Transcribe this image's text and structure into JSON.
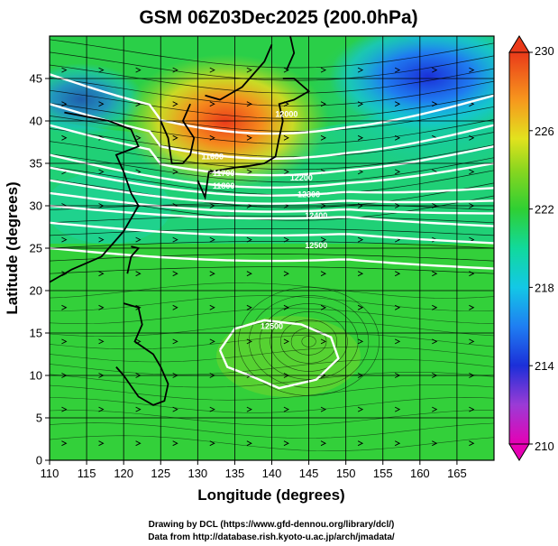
{
  "chart_data": {
    "type": "heatmap",
    "title": "GSM 06Z03Dec2025 (200.0hPa)",
    "xlabel": "Longitude (degrees)",
    "ylabel": "Latitude  (degrees)",
    "xlim": [
      110,
      170
    ],
    "ylim": [
      0,
      50
    ],
    "x_ticks": [
      110,
      115,
      120,
      125,
      130,
      135,
      140,
      145,
      150,
      155,
      160,
      165
    ],
    "y_ticks": [
      0,
      5,
      10,
      15,
      20,
      25,
      30,
      35,
      40,
      45
    ],
    "grid": true,
    "colorbar": {
      "label_values": [
        230,
        226,
        222,
        218,
        214,
        210
      ],
      "min": 210,
      "max": 230
    },
    "contour_labels": [
      {
        "text": "11600",
        "lon": 132,
        "lat": 35.5
      },
      {
        "text": "11700",
        "lon": 133.5,
        "lat": 33.5
      },
      {
        "text": "11800",
        "lon": 133.5,
        "lat": 32.0
      },
      {
        "text": "12000",
        "lon": 142,
        "lat": 40.5
      },
      {
        "text": "12200",
        "lon": 144,
        "lat": 33.0
      },
      {
        "text": "12300",
        "lon": 145,
        "lat": 31.0
      },
      {
        "text": "12400",
        "lon": 146,
        "lat": 28.5
      },
      {
        "text": "12500",
        "lon": 146,
        "lat": 25.0
      },
      {
        "text": "12500",
        "lon": 140,
        "lat": 15.5
      }
    ]
  },
  "footer": {
    "line1": "Drawing by DCL (https://www.gfd-dennou.org/library/dcl/)",
    "line2": "Data from http://database.rish.kyoto-u.ac.jp/arch/jmadata/"
  }
}
